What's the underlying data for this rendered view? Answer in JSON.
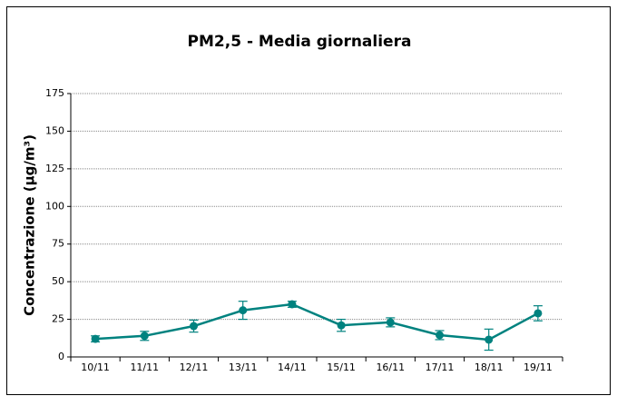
{
  "chart_data": {
    "type": "line",
    "title": "PM2,5 - Media giornaliera",
    "y_label": "Concentrazione (µg/m³)",
    "categories": [
      "10/11",
      "11/11",
      "12/11",
      "13/11",
      "14/11",
      "15/11",
      "16/11",
      "17/11",
      "18/11",
      "19/11"
    ],
    "series": [
      {
        "name": "PM2,5",
        "color": "#00827f",
        "values": [
          12,
          14,
          20.5,
          31,
          35,
          21,
          23,
          14.5,
          11.5,
          29
        ],
        "errors": [
          2,
          3,
          4,
          6,
          2,
          4,
          3,
          3,
          7,
          5
        ]
      }
    ],
    "ylim": [
      0,
      175
    ],
    "yticks": [
      0,
      25,
      50,
      75,
      100,
      125,
      150,
      175
    ],
    "grid": true
  }
}
